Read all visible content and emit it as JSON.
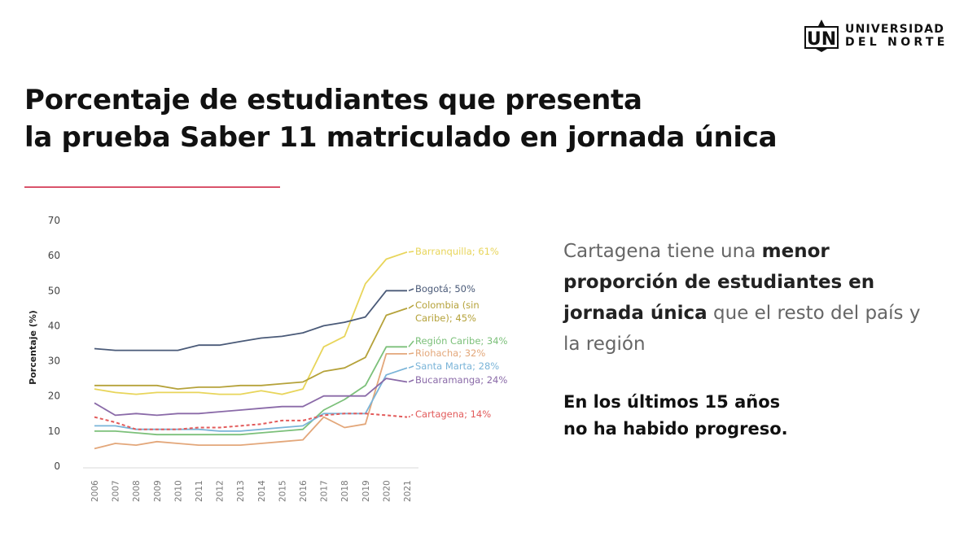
{
  "logo": {
    "initials": "UN",
    "line1": "UNIVERSIDAD",
    "line2": "DEL NORTE"
  },
  "title": {
    "line1": "Porcentaje de estudiantes que presenta",
    "line2": "la prueba Saber 11 matriculado en jornada única"
  },
  "side_text": {
    "p1_normal_1": "Cartagena tiene una ",
    "p1_bold_1": "menor proporción de estudiantes en jornada única",
    "p1_normal_2": " que el resto del país y la región",
    "p2_line1": "En los últimos 15 años",
    "p2_line2": "no ha habido progreso."
  },
  "colors": {
    "accent_divider": "#d9536b",
    "barranquilla": "#e8d55a",
    "bogota": "#4a5a78",
    "colombia": "#b5a23a",
    "region_caribe": "#7cc07a",
    "riohacha": "#e3a77a",
    "santa_marta": "#7ab4d8",
    "bucaramanga": "#8a6aa8",
    "cartagena": "#e25b5b"
  },
  "chart_data": {
    "type": "line",
    "title": "",
    "xlabel": "",
    "ylabel": "Porcentaje (%)",
    "ylim": [
      0,
      70
    ],
    "yticks": [
      "0",
      "10",
      "20",
      "30",
      "40",
      "50",
      "60",
      "70"
    ],
    "grid": false,
    "legend": "inline-right",
    "x": [
      "2006",
      "2007",
      "2008",
      "2009",
      "2010",
      "2011",
      "2012",
      "2013",
      "2014",
      "2015",
      "2016",
      "2017",
      "2018",
      "2019",
      "2020",
      "2021"
    ],
    "series": [
      {
        "name": "Barranquilla",
        "label": "Barranquilla; 61%",
        "color_key": "barranquilla",
        "dashed": false,
        "values": [
          22,
          21,
          20.5,
          21,
          21,
          21,
          20.5,
          20.5,
          21.5,
          20.5,
          22,
          34,
          37,
          52,
          59,
          61
        ]
      },
      {
        "name": "Bogotá",
        "label": "Bogotá; 50%",
        "color_key": "bogota",
        "dashed": false,
        "values": [
          33.5,
          33,
          33,
          33,
          33,
          34.5,
          34.5,
          35.5,
          36.5,
          37,
          38,
          40,
          41,
          42.5,
          50,
          50
        ]
      },
      {
        "name": "Colombia (sin Caribe)",
        "label": "Colombia (sin Caribe); 45%",
        "label_line1": "Colombia (sin",
        "label_line2": "Caribe); 45%",
        "color_key": "colombia",
        "dashed": false,
        "values": [
          23,
          23,
          23,
          23,
          22,
          22.5,
          22.5,
          23,
          23,
          23.5,
          24,
          27,
          28,
          31,
          43,
          45
        ]
      },
      {
        "name": "Región Caribe",
        "label": "Región Caribe; 34%",
        "color_key": "region_caribe",
        "dashed": false,
        "values": [
          10,
          10,
          9.5,
          9,
          9,
          9,
          9,
          9,
          9.5,
          10,
          10.5,
          16,
          19,
          23,
          34,
          34
        ]
      },
      {
        "name": "Riohacha",
        "label": "Riohacha; 32%",
        "color_key": "riohacha",
        "dashed": false,
        "values": [
          5,
          6.5,
          6,
          7,
          6.5,
          6,
          6,
          6,
          6.5,
          7,
          7.5,
          14,
          11,
          12,
          32,
          32
        ]
      },
      {
        "name": "Santa Marta",
        "label": "Santa Marta; 28%",
        "color_key": "santa_marta",
        "dashed": false,
        "values": [
          11.5,
          11.5,
          10.5,
          10.5,
          10.5,
          10.5,
          10,
          10,
          10.5,
          11,
          11.5,
          15,
          15,
          15,
          26,
          28
        ]
      },
      {
        "name": "Bucaramanga",
        "label": "Bucaramanga; 24%",
        "color_key": "bucaramanga",
        "dashed": false,
        "values": [
          18,
          14.5,
          15,
          14.5,
          15,
          15,
          15.5,
          16,
          16.5,
          17,
          17,
          20,
          20,
          20,
          25,
          24
        ]
      },
      {
        "name": "Cartagena",
        "label": "Cartagena; 14%",
        "color_key": "cartagena",
        "dashed": true,
        "values": [
          14,
          12.5,
          10.5,
          10.5,
          10.5,
          11,
          11,
          11.5,
          12,
          13,
          13,
          14.5,
          15,
          15,
          14.5,
          14
        ]
      }
    ]
  }
}
